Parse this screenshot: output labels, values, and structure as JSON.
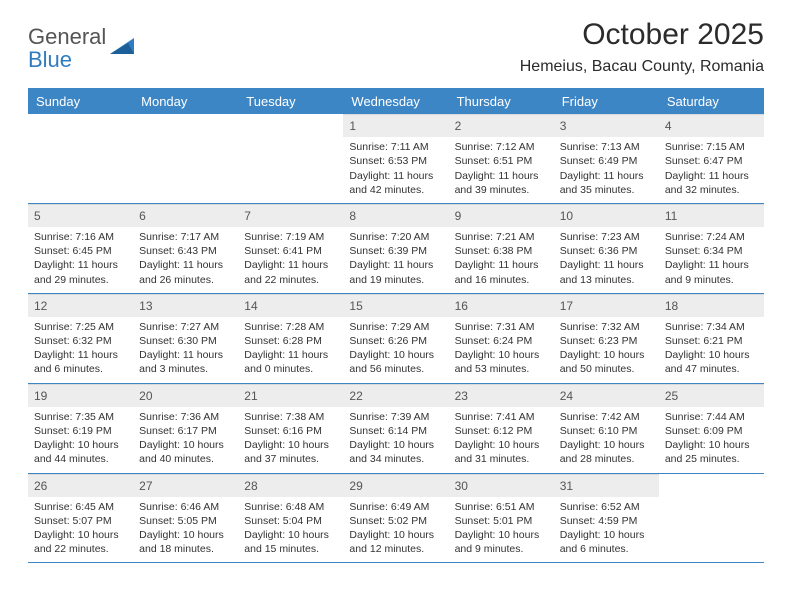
{
  "logo": {
    "line1": "General",
    "line2": "Blue"
  },
  "title": "October 2025",
  "location": "Hemeius, Bacau County, Romania",
  "colors": {
    "header_bg": "#3d86c6",
    "header_text": "#ffffff",
    "daynum_bg": "#ededed",
    "daynum_text": "#555555",
    "rule": "#3d86c6",
    "body_text": "#333333",
    "logo_gray": "#555555",
    "logo_blue": "#2f7dc0"
  },
  "day_headers": [
    "Sunday",
    "Monday",
    "Tuesday",
    "Wednesday",
    "Thursday",
    "Friday",
    "Saturday"
  ],
  "weeks": [
    [
      {
        "n": "",
        "sr": "",
        "ss": "",
        "dl": ""
      },
      {
        "n": "",
        "sr": "",
        "ss": "",
        "dl": ""
      },
      {
        "n": "",
        "sr": "",
        "ss": "",
        "dl": ""
      },
      {
        "n": "1",
        "sr": "Sunrise: 7:11 AM",
        "ss": "Sunset: 6:53 PM",
        "dl": "Daylight: 11 hours and 42 minutes."
      },
      {
        "n": "2",
        "sr": "Sunrise: 7:12 AM",
        "ss": "Sunset: 6:51 PM",
        "dl": "Daylight: 11 hours and 39 minutes."
      },
      {
        "n": "3",
        "sr": "Sunrise: 7:13 AM",
        "ss": "Sunset: 6:49 PM",
        "dl": "Daylight: 11 hours and 35 minutes."
      },
      {
        "n": "4",
        "sr": "Sunrise: 7:15 AM",
        "ss": "Sunset: 6:47 PM",
        "dl": "Daylight: 11 hours and 32 minutes."
      }
    ],
    [
      {
        "n": "5",
        "sr": "Sunrise: 7:16 AM",
        "ss": "Sunset: 6:45 PM",
        "dl": "Daylight: 11 hours and 29 minutes."
      },
      {
        "n": "6",
        "sr": "Sunrise: 7:17 AM",
        "ss": "Sunset: 6:43 PM",
        "dl": "Daylight: 11 hours and 26 minutes."
      },
      {
        "n": "7",
        "sr": "Sunrise: 7:19 AM",
        "ss": "Sunset: 6:41 PM",
        "dl": "Daylight: 11 hours and 22 minutes."
      },
      {
        "n": "8",
        "sr": "Sunrise: 7:20 AM",
        "ss": "Sunset: 6:39 PM",
        "dl": "Daylight: 11 hours and 19 minutes."
      },
      {
        "n": "9",
        "sr": "Sunrise: 7:21 AM",
        "ss": "Sunset: 6:38 PM",
        "dl": "Daylight: 11 hours and 16 minutes."
      },
      {
        "n": "10",
        "sr": "Sunrise: 7:23 AM",
        "ss": "Sunset: 6:36 PM",
        "dl": "Daylight: 11 hours and 13 minutes."
      },
      {
        "n": "11",
        "sr": "Sunrise: 7:24 AM",
        "ss": "Sunset: 6:34 PM",
        "dl": "Daylight: 11 hours and 9 minutes."
      }
    ],
    [
      {
        "n": "12",
        "sr": "Sunrise: 7:25 AM",
        "ss": "Sunset: 6:32 PM",
        "dl": "Daylight: 11 hours and 6 minutes."
      },
      {
        "n": "13",
        "sr": "Sunrise: 7:27 AM",
        "ss": "Sunset: 6:30 PM",
        "dl": "Daylight: 11 hours and 3 minutes."
      },
      {
        "n": "14",
        "sr": "Sunrise: 7:28 AM",
        "ss": "Sunset: 6:28 PM",
        "dl": "Daylight: 11 hours and 0 minutes."
      },
      {
        "n": "15",
        "sr": "Sunrise: 7:29 AM",
        "ss": "Sunset: 6:26 PM",
        "dl": "Daylight: 10 hours and 56 minutes."
      },
      {
        "n": "16",
        "sr": "Sunrise: 7:31 AM",
        "ss": "Sunset: 6:24 PM",
        "dl": "Daylight: 10 hours and 53 minutes."
      },
      {
        "n": "17",
        "sr": "Sunrise: 7:32 AM",
        "ss": "Sunset: 6:23 PM",
        "dl": "Daylight: 10 hours and 50 minutes."
      },
      {
        "n": "18",
        "sr": "Sunrise: 7:34 AM",
        "ss": "Sunset: 6:21 PM",
        "dl": "Daylight: 10 hours and 47 minutes."
      }
    ],
    [
      {
        "n": "19",
        "sr": "Sunrise: 7:35 AM",
        "ss": "Sunset: 6:19 PM",
        "dl": "Daylight: 10 hours and 44 minutes."
      },
      {
        "n": "20",
        "sr": "Sunrise: 7:36 AM",
        "ss": "Sunset: 6:17 PM",
        "dl": "Daylight: 10 hours and 40 minutes."
      },
      {
        "n": "21",
        "sr": "Sunrise: 7:38 AM",
        "ss": "Sunset: 6:16 PM",
        "dl": "Daylight: 10 hours and 37 minutes."
      },
      {
        "n": "22",
        "sr": "Sunrise: 7:39 AM",
        "ss": "Sunset: 6:14 PM",
        "dl": "Daylight: 10 hours and 34 minutes."
      },
      {
        "n": "23",
        "sr": "Sunrise: 7:41 AM",
        "ss": "Sunset: 6:12 PM",
        "dl": "Daylight: 10 hours and 31 minutes."
      },
      {
        "n": "24",
        "sr": "Sunrise: 7:42 AM",
        "ss": "Sunset: 6:10 PM",
        "dl": "Daylight: 10 hours and 28 minutes."
      },
      {
        "n": "25",
        "sr": "Sunrise: 7:44 AM",
        "ss": "Sunset: 6:09 PM",
        "dl": "Daylight: 10 hours and 25 minutes."
      }
    ],
    [
      {
        "n": "26",
        "sr": "Sunrise: 6:45 AM",
        "ss": "Sunset: 5:07 PM",
        "dl": "Daylight: 10 hours and 22 minutes."
      },
      {
        "n": "27",
        "sr": "Sunrise: 6:46 AM",
        "ss": "Sunset: 5:05 PM",
        "dl": "Daylight: 10 hours and 18 minutes."
      },
      {
        "n": "28",
        "sr": "Sunrise: 6:48 AM",
        "ss": "Sunset: 5:04 PM",
        "dl": "Daylight: 10 hours and 15 minutes."
      },
      {
        "n": "29",
        "sr": "Sunrise: 6:49 AM",
        "ss": "Sunset: 5:02 PM",
        "dl": "Daylight: 10 hours and 12 minutes."
      },
      {
        "n": "30",
        "sr": "Sunrise: 6:51 AM",
        "ss": "Sunset: 5:01 PM",
        "dl": "Daylight: 10 hours and 9 minutes."
      },
      {
        "n": "31",
        "sr": "Sunrise: 6:52 AM",
        "ss": "Sunset: 4:59 PM",
        "dl": "Daylight: 10 hours and 6 minutes."
      },
      {
        "n": "",
        "sr": "",
        "ss": "",
        "dl": ""
      }
    ]
  ]
}
